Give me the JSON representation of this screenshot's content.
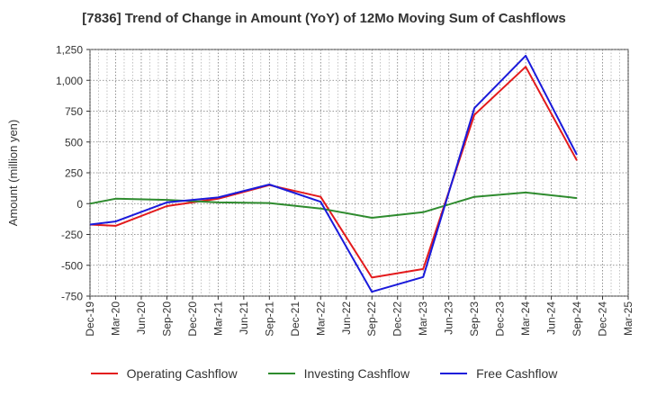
{
  "chart_data": {
    "type": "line",
    "title": "[7836]  Trend of Change in Amount (YoY) of 12Mo Moving Sum of Cashflows",
    "xlabel": "",
    "ylabel": "Amount (million yen)",
    "ylim": [
      -750,
      1250
    ],
    "yticks": [
      1250,
      1000,
      750,
      500,
      250,
      0,
      -250,
      -500,
      -750
    ],
    "ytick_labels": [
      "1,250",
      "1,000",
      "750",
      "500",
      "250",
      "0",
      "-250",
      "-500",
      "-750"
    ],
    "categories": [
      "Dec-19",
      "Mar-20",
      "Jun-20",
      "Sep-20",
      "Dec-20",
      "Mar-21",
      "Jun-21",
      "Sep-21",
      "Dec-21",
      "Mar-22",
      "Jun-22",
      "Sep-22",
      "Dec-22",
      "Mar-23",
      "Jun-23",
      "Sep-23",
      "Dec-23",
      "Mar-24",
      "Jun-24",
      "Sep-24",
      "Dec-24",
      "Mar-25"
    ],
    "grid": true,
    "legend_position": "bottom",
    "series": [
      {
        "name": "Operating Cashflow",
        "color": "#e31a1c",
        "values": [
          -170,
          -180,
          null,
          -20,
          null,
          40,
          null,
          150,
          null,
          55,
          null,
          -600,
          null,
          -530,
          null,
          720,
          null,
          1110,
          null,
          350,
          null,
          null
        ]
      },
      {
        "name": "Investing Cashflow",
        "color": "#2e8b2e",
        "values": [
          0,
          40,
          null,
          30,
          null,
          10,
          null,
          5,
          null,
          -40,
          null,
          -115,
          null,
          -70,
          null,
          55,
          null,
          90,
          null,
          45,
          null,
          null
        ]
      },
      {
        "name": "Free Cashflow",
        "color": "#1a1adb",
        "values": [
          -170,
          -145,
          null,
          10,
          null,
          50,
          null,
          155,
          null,
          15,
          null,
          -715,
          null,
          -595,
          null,
          775,
          null,
          1200,
          null,
          395,
          null,
          null
        ]
      }
    ]
  }
}
